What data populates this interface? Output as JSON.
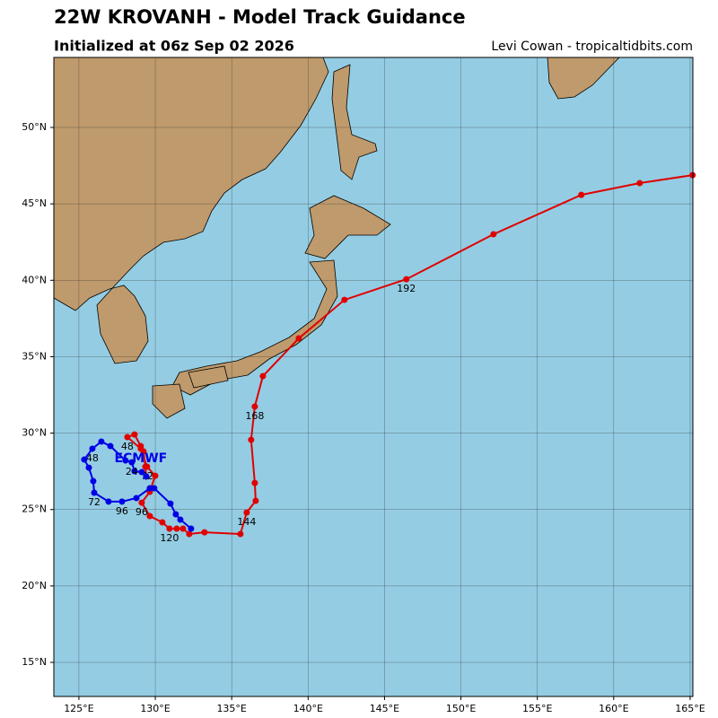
{
  "chart_data": {
    "type": "track",
    "title": "22W KROVANH - Model Track Guidance",
    "subtitle": "Initialized at 06z Sep 02 2026",
    "credit": "Levi Cowan - tropicaltidbits.com",
    "xlim": [
      123.36,
      165.18
    ],
    "ylim": [
      12.77,
      54.58
    ],
    "xticks": [
      {
        "value": 125,
        "label": "125°E"
      },
      {
        "value": 130,
        "label": "130°E"
      },
      {
        "value": 135,
        "label": "135°E"
      },
      {
        "value": 140,
        "label": "140°E"
      },
      {
        "value": 145,
        "label": "145°E"
      },
      {
        "value": 150,
        "label": "150°E"
      },
      {
        "value": 155,
        "label": "155°E"
      },
      {
        "value": 160,
        "label": "160°E"
      },
      {
        "value": 165,
        "label": "165°E"
      }
    ],
    "yticks": [
      {
        "value": 15,
        "label": "15°N"
      },
      {
        "value": 20,
        "label": "20°N"
      },
      {
        "value": 25,
        "label": "25°N"
      },
      {
        "value": 30,
        "label": "30°N"
      },
      {
        "value": 35,
        "label": "35°N"
      },
      {
        "value": 40,
        "label": "40°N"
      },
      {
        "value": 45,
        "label": "45°N"
      },
      {
        "value": 50,
        "label": "50°N"
      }
    ],
    "grid": true,
    "series": [
      {
        "color": "#e00000",
        "x": [
          129.4,
          129.35,
          129.23,
          129.05,
          128.64,
          128.17,
          129.05,
          129.46,
          129.99,
          129.64,
          129.11,
          129.64,
          130.46,
          130.93,
          131.4,
          131.81,
          132.22,
          133.22,
          135.57,
          135.98,
          136.57,
          136.51,
          136.27,
          136.51,
          137.04,
          139.39,
          142.38,
          146.43,
          152.13,
          157.88,
          161.7,
          165.16
        ],
        "values": [
          27.16,
          27.8,
          28.8,
          29.15,
          29.91,
          29.74,
          28.98,
          27.8,
          27.21,
          26.16,
          25.45,
          24.57,
          24.16,
          23.75,
          23.75,
          23.75,
          23.4,
          23.51,
          23.4,
          24.81,
          25.57,
          26.74,
          29.56,
          31.74,
          33.73,
          36.2,
          38.72,
          40.07,
          43.01,
          45.59,
          46.36,
          46.88
        ],
        "point_labels": [
          null,
          null,
          null,
          null,
          null,
          "48",
          null,
          "72",
          null,
          null,
          "96",
          null,
          null,
          "120",
          null,
          null,
          null,
          null,
          null,
          "144",
          null,
          null,
          null,
          "168",
          null,
          null,
          null,
          "192",
          null,
          null,
          null,
          null
        ]
      },
      {
        "name": "ECMWF",
        "color": "#0000e6",
        "x": [
          129.4,
          129.11,
          128.64,
          128.46,
          128.05,
          127.06,
          126.47,
          125.88,
          125.35,
          125.65,
          125.94,
          126.0,
          126.94,
          127.82,
          128.76,
          129.64,
          129.93,
          130.99,
          131.34,
          131.64,
          132.34
        ],
        "values": [
          27.16,
          27.45,
          27.51,
          28.09,
          28.21,
          29.15,
          29.45,
          28.98,
          28.27,
          27.74,
          26.86,
          26.1,
          25.52,
          25.52,
          25.75,
          26.39,
          26.39,
          25.39,
          24.69,
          24.34,
          23.75
        ],
        "point_labels": [
          null,
          null,
          null,
          "24",
          null,
          null,
          null,
          "48",
          null,
          null,
          null,
          "72",
          null,
          "96",
          null,
          null,
          null,
          null,
          null,
          null,
          null
        ]
      }
    ]
  }
}
